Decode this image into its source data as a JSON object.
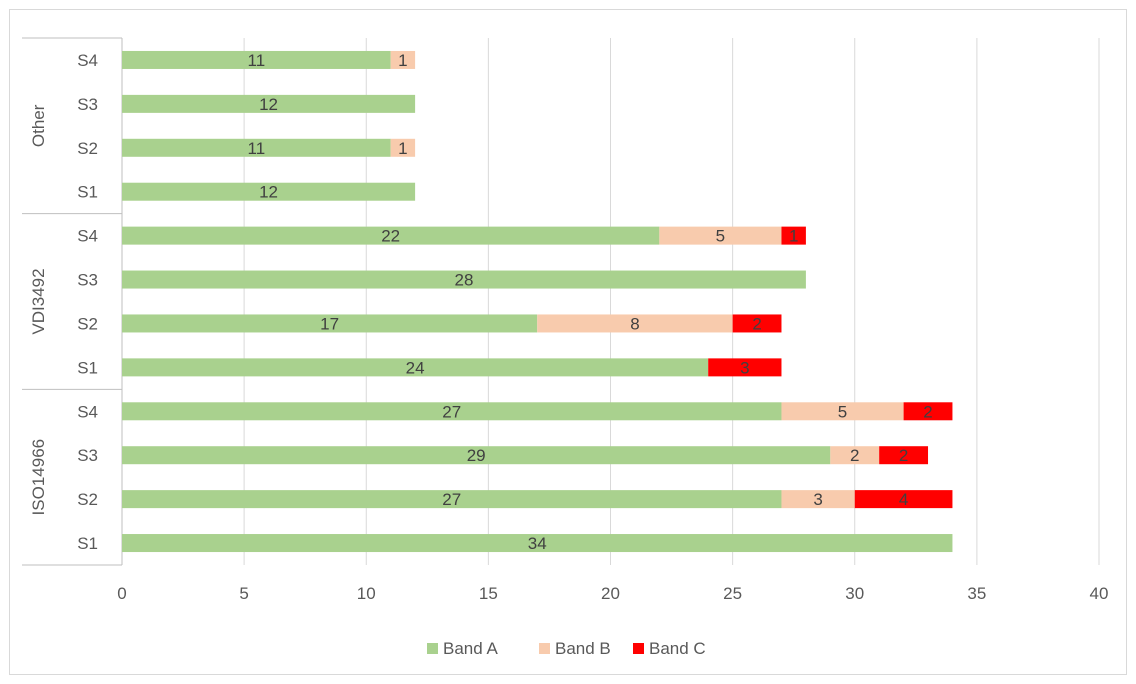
{
  "chart_data": {
    "type": "bar",
    "orientation": "horizontal",
    "stacked": true,
    "title": "",
    "xlabel": "",
    "ylabel": "",
    "xlim": [
      0,
      40
    ],
    "x_ticks": [
      0,
      5,
      10,
      15,
      20,
      25,
      30,
      35,
      40
    ],
    "grid": true,
    "legend_position": "bottom",
    "groups": [
      {
        "name": "ISO14966",
        "categories": [
          "S1",
          "S2",
          "S3",
          "S4"
        ]
      },
      {
        "name": "VDI3492",
        "categories": [
          "S1",
          "S2",
          "S3",
          "S4"
        ]
      },
      {
        "name": "Other",
        "categories": [
          "S1",
          "S2",
          "S3",
          "S4"
        ]
      }
    ],
    "series": [
      {
        "name": "Band A",
        "color": "#a9d18e",
        "values": [
          34,
          27,
          29,
          27,
          24,
          17,
          28,
          22,
          12,
          11,
          12,
          11
        ]
      },
      {
        "name": "Band B",
        "color": "#f8cbad",
        "values": [
          0,
          3,
          2,
          5,
          0,
          8,
          0,
          5,
          0,
          1,
          0,
          1
        ]
      },
      {
        "name": "Band C",
        "color": "#ff0000",
        "values": [
          0,
          4,
          2,
          2,
          3,
          2,
          0,
          1,
          0,
          0,
          0,
          0
        ]
      }
    ]
  }
}
